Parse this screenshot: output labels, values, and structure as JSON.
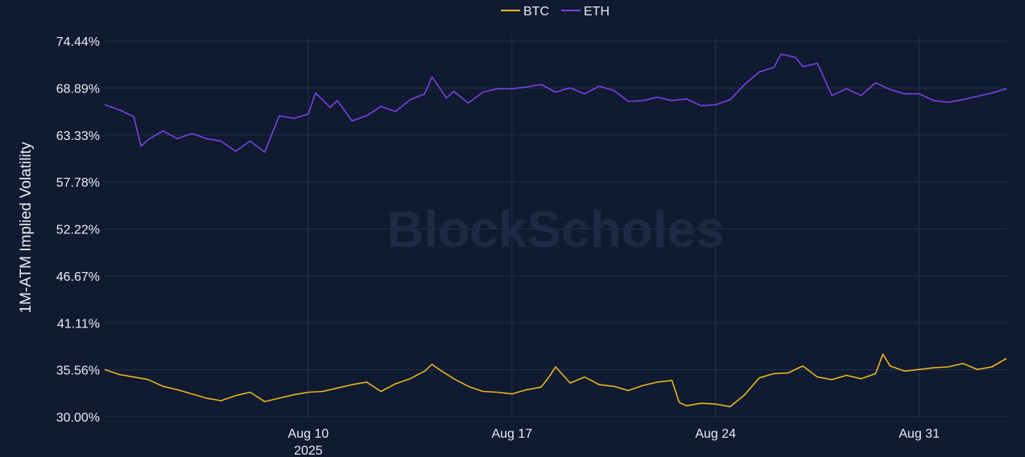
{
  "watermark": "BlockScholes",
  "chart_data": {
    "type": "line",
    "ylabel": "1M-ATM Implied Volatility",
    "xlabel": "",
    "y_ticks": [
      "30.00%",
      "35.56%",
      "41.11%",
      "46.67%",
      "52.22%",
      "57.78%",
      "63.33%",
      "68.89%",
      "74.44%"
    ],
    "ylim": [
      30.0,
      74.44
    ],
    "x_range": [
      "2025-08-03",
      "2025-09-03"
    ],
    "x_ticks": [
      {
        "date": "2025-08-10",
        "label": "Aug 10",
        "sublabel": "2025"
      },
      {
        "date": "2025-08-17",
        "label": "Aug 17",
        "sublabel": ""
      },
      {
        "date": "2025-08-24",
        "label": "Aug 24",
        "sublabel": ""
      },
      {
        "date": "2025-08-31",
        "label": "Aug 31",
        "sublabel": ""
      }
    ],
    "grid": true,
    "legend_position": "top-center",
    "series": [
      {
        "name": "BTC",
        "color": "#e6b81e",
        "points": [
          [
            "2025-08-03",
            35.6
          ],
          [
            "2025-08-03T12:00",
            35.0
          ],
          [
            "2025-08-04",
            34.7
          ],
          [
            "2025-08-04T12:00",
            34.4
          ],
          [
            "2025-08-05",
            33.6
          ],
          [
            "2025-08-05T12:00",
            33.2
          ],
          [
            "2025-08-06",
            32.7
          ],
          [
            "2025-08-06T12:00",
            32.2
          ],
          [
            "2025-08-07",
            31.9
          ],
          [
            "2025-08-07T12:00",
            32.5
          ],
          [
            "2025-08-08",
            32.9
          ],
          [
            "2025-08-08T12:00",
            31.8
          ],
          [
            "2025-08-09",
            32.2
          ],
          [
            "2025-08-09T12:00",
            32.6
          ],
          [
            "2025-08-10",
            32.9
          ],
          [
            "2025-08-10T12:00",
            33.0
          ],
          [
            "2025-08-11",
            33.4
          ],
          [
            "2025-08-11T12:00",
            33.8
          ],
          [
            "2025-08-12",
            34.1
          ],
          [
            "2025-08-12T12:00",
            33.0
          ],
          [
            "2025-08-13",
            33.9
          ],
          [
            "2025-08-13T12:00",
            34.5
          ],
          [
            "2025-08-14",
            35.4
          ],
          [
            "2025-08-14T06:00",
            36.2
          ],
          [
            "2025-08-14T12:00",
            35.6
          ],
          [
            "2025-08-15",
            34.5
          ],
          [
            "2025-08-15T12:00",
            33.6
          ],
          [
            "2025-08-16",
            33.0
          ],
          [
            "2025-08-16T12:00",
            32.9
          ],
          [
            "2025-08-17",
            32.7
          ],
          [
            "2025-08-17T12:00",
            33.2
          ],
          [
            "2025-08-18",
            33.5
          ],
          [
            "2025-08-18T06:00",
            34.6
          ],
          [
            "2025-08-18T12:00",
            35.9
          ],
          [
            "2025-08-19",
            34.0
          ],
          [
            "2025-08-19T12:00",
            34.7
          ],
          [
            "2025-08-20",
            33.8
          ],
          [
            "2025-08-20T12:00",
            33.6
          ],
          [
            "2025-08-21",
            33.1
          ],
          [
            "2025-08-21T12:00",
            33.7
          ],
          [
            "2025-08-22",
            34.1
          ],
          [
            "2025-08-22T12:00",
            34.3
          ],
          [
            "2025-08-22T18:00",
            31.7
          ],
          [
            "2025-08-23",
            31.3
          ],
          [
            "2025-08-23T12:00",
            31.6
          ],
          [
            "2025-08-24",
            31.5
          ],
          [
            "2025-08-24T12:00",
            31.2
          ],
          [
            "2025-08-25",
            32.6
          ],
          [
            "2025-08-25T12:00",
            34.6
          ],
          [
            "2025-08-26",
            35.1
          ],
          [
            "2025-08-26T12:00",
            35.2
          ],
          [
            "2025-08-27",
            36.0
          ],
          [
            "2025-08-27T12:00",
            34.7
          ],
          [
            "2025-08-28",
            34.4
          ],
          [
            "2025-08-28T12:00",
            34.9
          ],
          [
            "2025-08-29",
            34.5
          ],
          [
            "2025-08-29T12:00",
            35.1
          ],
          [
            "2025-08-29T18:00",
            37.4
          ],
          [
            "2025-08-30",
            36.0
          ],
          [
            "2025-08-30T12:00",
            35.4
          ],
          [
            "2025-08-31",
            35.6
          ],
          [
            "2025-08-31T12:00",
            35.8
          ],
          [
            "2025-09-01",
            35.9
          ],
          [
            "2025-09-01T12:00",
            36.3
          ],
          [
            "2025-09-02",
            35.6
          ],
          [
            "2025-09-02T12:00",
            35.9
          ],
          [
            "2025-09-03",
            36.9
          ]
        ]
      },
      {
        "name": "ETH",
        "color": "#7744e6",
        "points": [
          [
            "2025-08-03",
            66.9
          ],
          [
            "2025-08-03T12:00",
            66.3
          ],
          [
            "2025-08-04",
            65.5
          ],
          [
            "2025-08-04T06:00",
            62.0
          ],
          [
            "2025-08-04T12:00",
            62.8
          ],
          [
            "2025-08-05",
            63.8
          ],
          [
            "2025-08-05T12:00",
            62.9
          ],
          [
            "2025-08-06",
            63.5
          ],
          [
            "2025-08-06T12:00",
            62.9
          ],
          [
            "2025-08-07",
            62.6
          ],
          [
            "2025-08-07T12:00",
            61.4
          ],
          [
            "2025-08-08",
            62.6
          ],
          [
            "2025-08-08T12:00",
            61.3
          ],
          [
            "2025-08-09",
            65.6
          ],
          [
            "2025-08-09T12:00",
            65.3
          ],
          [
            "2025-08-10",
            65.8
          ],
          [
            "2025-08-10T06:00",
            68.3
          ],
          [
            "2025-08-10T18:00",
            66.6
          ],
          [
            "2025-08-11",
            67.4
          ],
          [
            "2025-08-11T12:00",
            65.0
          ],
          [
            "2025-08-12",
            65.6
          ],
          [
            "2025-08-12T12:00",
            66.7
          ],
          [
            "2025-08-13",
            66.1
          ],
          [
            "2025-08-13T12:00",
            67.5
          ],
          [
            "2025-08-14",
            68.2
          ],
          [
            "2025-08-14T06:00",
            70.2
          ],
          [
            "2025-08-14T18:00",
            67.7
          ],
          [
            "2025-08-15",
            68.5
          ],
          [
            "2025-08-15T12:00",
            67.1
          ],
          [
            "2025-08-16",
            68.4
          ],
          [
            "2025-08-16T12:00",
            68.8
          ],
          [
            "2025-08-17",
            68.8
          ],
          [
            "2025-08-17T12:00",
            69.0
          ],
          [
            "2025-08-18",
            69.3
          ],
          [
            "2025-08-18T12:00",
            68.4
          ],
          [
            "2025-08-19",
            68.9
          ],
          [
            "2025-08-19T12:00",
            68.2
          ],
          [
            "2025-08-20",
            69.1
          ],
          [
            "2025-08-20T12:00",
            68.6
          ],
          [
            "2025-08-21",
            67.3
          ],
          [
            "2025-08-21T12:00",
            67.4
          ],
          [
            "2025-08-22",
            67.8
          ],
          [
            "2025-08-22T12:00",
            67.4
          ],
          [
            "2025-08-23",
            67.6
          ],
          [
            "2025-08-23T12:00",
            66.8
          ],
          [
            "2025-08-24",
            66.9
          ],
          [
            "2025-08-24T12:00",
            67.5
          ],
          [
            "2025-08-25",
            69.3
          ],
          [
            "2025-08-25T12:00",
            70.8
          ],
          [
            "2025-08-26",
            71.3
          ],
          [
            "2025-08-26T06:00",
            72.9
          ],
          [
            "2025-08-26T18:00",
            72.5
          ],
          [
            "2025-08-27",
            71.4
          ],
          [
            "2025-08-27T12:00",
            71.8
          ],
          [
            "2025-08-28",
            68.0
          ],
          [
            "2025-08-28T12:00",
            68.8
          ],
          [
            "2025-08-29",
            68.0
          ],
          [
            "2025-08-29T12:00",
            69.5
          ],
          [
            "2025-08-30",
            68.7
          ],
          [
            "2025-08-30T12:00",
            68.2
          ],
          [
            "2025-08-31",
            68.2
          ],
          [
            "2025-08-31T12:00",
            67.4
          ],
          [
            "2025-09-01",
            67.2
          ],
          [
            "2025-09-01T12:00",
            67.5
          ],
          [
            "2025-09-02",
            67.9
          ],
          [
            "2025-09-02T12:00",
            68.3
          ],
          [
            "2025-09-03",
            68.8
          ]
        ]
      }
    ]
  }
}
